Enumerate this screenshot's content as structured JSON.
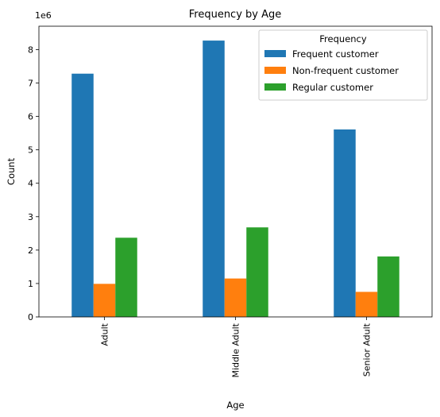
{
  "chart_data": {
    "type": "bar",
    "title": "Frequency by Age",
    "xlabel": "Age",
    "ylabel": "Count",
    "y_multiplier_label": "1e6",
    "y_multiplier": 1000000,
    "categories": [
      "Adult",
      "Middle Adult",
      "Senior Adult"
    ],
    "series": [
      {
        "name": "Frequent customer",
        "color": "#1f77b4",
        "values": [
          7280000,
          8270000,
          5610000
        ]
      },
      {
        "name": "Non-frequent customer",
        "color": "#ff7f0e",
        "values": [
          990000,
          1150000,
          750000
        ]
      },
      {
        "name": "Regular customer",
        "color": "#2ca02c",
        "values": [
          2370000,
          2680000,
          1810000
        ]
      }
    ],
    "ylim": [
      0,
      8700000
    ],
    "yticks": [
      0,
      1,
      2,
      3,
      4,
      5,
      6,
      7,
      8
    ],
    "grid": false,
    "legend": {
      "title": "Frequency",
      "position": "top-right"
    }
  }
}
